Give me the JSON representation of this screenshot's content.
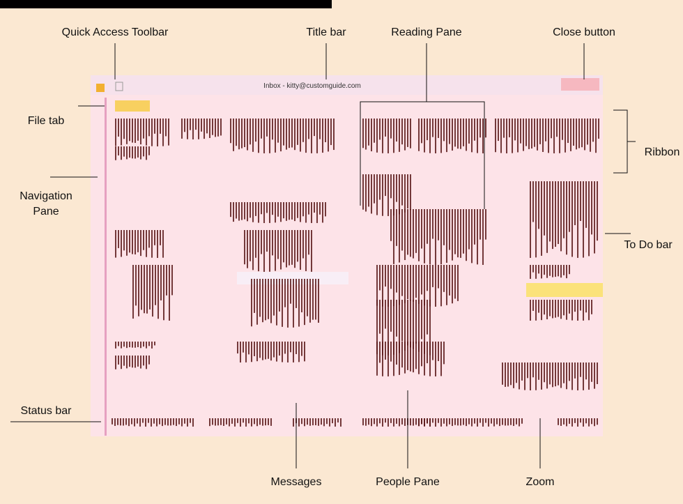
{
  "window": {
    "title": "Inbox - kitty@customguide.com"
  },
  "callouts": {
    "quick_access_toolbar": "Quick Access Toolbar",
    "title_bar": "Title bar",
    "reading_pane": "Reading Pane",
    "close_button": "Close button",
    "file_tab": "File tab",
    "navigation_pane": "Navigation\nPane",
    "status_bar": "Status bar",
    "ribbon": "Ribbon",
    "to_do_bar": "To Do bar",
    "messages": "Messages",
    "people_pane": "People Pane",
    "zoom": "Zoom"
  }
}
